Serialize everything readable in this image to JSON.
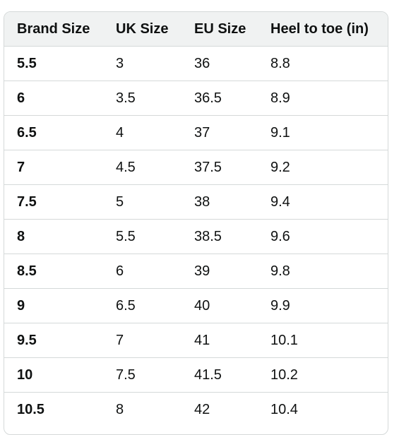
{
  "table": {
    "headers": [
      "Brand Size",
      "UK Size",
      "EU Size",
      "Heel to toe (in)"
    ],
    "rows": [
      [
        "5.5",
        "3",
        "36",
        "8.8"
      ],
      [
        "6",
        "3.5",
        "36.5",
        "8.9"
      ],
      [
        "6.5",
        "4",
        "37",
        "9.1"
      ],
      [
        "7",
        "4.5",
        "37.5",
        "9.2"
      ],
      [
        "7.5",
        "5",
        "38",
        "9.4"
      ],
      [
        "8",
        "5.5",
        "38.5",
        "9.6"
      ],
      [
        "8.5",
        "6",
        "39",
        "9.8"
      ],
      [
        "9",
        "6.5",
        "40",
        "9.9"
      ],
      [
        "9.5",
        "7",
        "41",
        "10.1"
      ],
      [
        "10",
        "7.5",
        "41.5",
        "10.2"
      ],
      [
        "10.5",
        "8",
        "42",
        "10.4"
      ]
    ]
  },
  "colors": {
    "header_background": "#f0f2f2",
    "border": "#d5d9d9",
    "text": "#0f1111"
  }
}
